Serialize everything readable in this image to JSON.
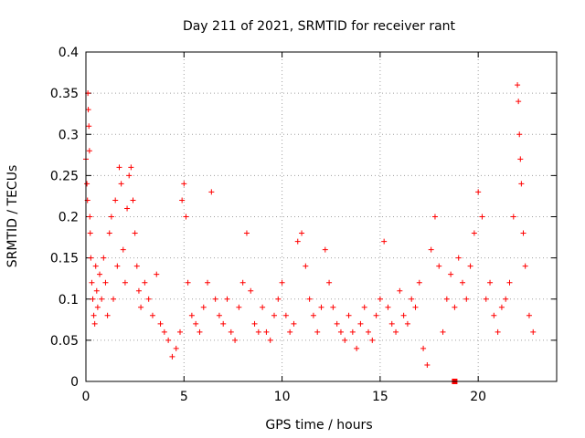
{
  "chart_data": {
    "type": "scatter",
    "title": "Day 211 of 2021, SRMTID for receiver rant",
    "xlabel": "GPS time / hours",
    "ylabel": "SRMTID / TECUs",
    "xlim": [
      0,
      24
    ],
    "ylim": [
      0,
      0.4
    ],
    "xticks": [
      0,
      5,
      10,
      15,
      20
    ],
    "xtick_labels": [
      "0",
      "5",
      "10",
      "15",
      "20"
    ],
    "yticks": [
      0,
      0.05,
      0.1,
      0.15,
      0.2,
      0.25,
      0.3,
      0.35,
      0.4
    ],
    "ytick_labels": [
      "0",
      "0.05",
      "0.1",
      "0.15",
      "0.2",
      "0.25",
      "0.3",
      "0.35",
      "0.4"
    ],
    "grid": true,
    "marker": "plus",
    "color": "#ff0000",
    "series": [
      {
        "name": "SRMTID",
        "points": [
          [
            0.0,
            0.27
          ],
          [
            0.05,
            0.24
          ],
          [
            0.08,
            0.22
          ],
          [
            0.1,
            0.35
          ],
          [
            0.12,
            0.33
          ],
          [
            0.15,
            0.31
          ],
          [
            0.18,
            0.28
          ],
          [
            0.2,
            0.2
          ],
          [
            0.22,
            0.18
          ],
          [
            0.25,
            0.15
          ],
          [
            0.3,
            0.12
          ],
          [
            0.35,
            0.1
          ],
          [
            0.4,
            0.08
          ],
          [
            0.45,
            0.07
          ],
          [
            0.5,
            0.14
          ],
          [
            0.55,
            0.11
          ],
          [
            0.6,
            0.09
          ],
          [
            0.7,
            0.13
          ],
          [
            0.8,
            0.1
          ],
          [
            0.9,
            0.15
          ],
          [
            1.0,
            0.12
          ],
          [
            1.1,
            0.08
          ],
          [
            1.2,
            0.18
          ],
          [
            1.3,
            0.2
          ],
          [
            1.4,
            0.1
          ],
          [
            1.5,
            0.22
          ],
          [
            1.6,
            0.14
          ],
          [
            1.7,
            0.26
          ],
          [
            1.8,
            0.24
          ],
          [
            1.9,
            0.16
          ],
          [
            2.0,
            0.12
          ],
          [
            2.1,
            0.21
          ],
          [
            2.2,
            0.25
          ],
          [
            2.3,
            0.26
          ],
          [
            2.4,
            0.22
          ],
          [
            2.5,
            0.18
          ],
          [
            2.6,
            0.14
          ],
          [
            2.7,
            0.11
          ],
          [
            2.8,
            0.09
          ],
          [
            3.0,
            0.12
          ],
          [
            3.2,
            0.1
          ],
          [
            3.4,
            0.08
          ],
          [
            3.6,
            0.13
          ],
          [
            3.8,
            0.07
          ],
          [
            4.0,
            0.06
          ],
          [
            4.2,
            0.05
          ],
          [
            4.4,
            0.03
          ],
          [
            4.6,
            0.04
          ],
          [
            4.8,
            0.06
          ],
          [
            4.9,
            0.22
          ],
          [
            5.0,
            0.24
          ],
          [
            5.1,
            0.2
          ],
          [
            5.2,
            0.12
          ],
          [
            5.4,
            0.08
          ],
          [
            5.6,
            0.07
          ],
          [
            5.8,
            0.06
          ],
          [
            6.0,
            0.09
          ],
          [
            6.2,
            0.12
          ],
          [
            6.4,
            0.23
          ],
          [
            6.6,
            0.1
          ],
          [
            6.8,
            0.08
          ],
          [
            7.0,
            0.07
          ],
          [
            7.2,
            0.1
          ],
          [
            7.4,
            0.06
          ],
          [
            7.6,
            0.05
          ],
          [
            7.8,
            0.09
          ],
          [
            8.0,
            0.12
          ],
          [
            8.2,
            0.18
          ],
          [
            8.4,
            0.11
          ],
          [
            8.6,
            0.07
          ],
          [
            8.8,
            0.06
          ],
          [
            9.0,
            0.09
          ],
          [
            9.2,
            0.06
          ],
          [
            9.4,
            0.05
          ],
          [
            9.6,
            0.08
          ],
          [
            9.8,
            0.1
          ],
          [
            10.0,
            0.12
          ],
          [
            10.2,
            0.08
          ],
          [
            10.4,
            0.06
          ],
          [
            10.6,
            0.07
          ],
          [
            10.8,
            0.17
          ],
          [
            11.0,
            0.18
          ],
          [
            11.2,
            0.14
          ],
          [
            11.4,
            0.1
          ],
          [
            11.6,
            0.08
          ],
          [
            11.8,
            0.06
          ],
          [
            12.0,
            0.09
          ],
          [
            12.2,
            0.16
          ],
          [
            12.4,
            0.12
          ],
          [
            12.6,
            0.09
          ],
          [
            12.8,
            0.07
          ],
          [
            13.0,
            0.06
          ],
          [
            13.2,
            0.05
          ],
          [
            13.4,
            0.08
          ],
          [
            13.6,
            0.06
          ],
          [
            13.8,
            0.04
          ],
          [
            14.0,
            0.07
          ],
          [
            14.2,
            0.09
          ],
          [
            14.4,
            0.06
          ],
          [
            14.6,
            0.05
          ],
          [
            14.8,
            0.08
          ],
          [
            15.0,
            0.1
          ],
          [
            15.2,
            0.17
          ],
          [
            15.4,
            0.09
          ],
          [
            15.6,
            0.07
          ],
          [
            15.8,
            0.06
          ],
          [
            16.0,
            0.11
          ],
          [
            16.2,
            0.08
          ],
          [
            16.4,
            0.07
          ],
          [
            16.6,
            0.1
          ],
          [
            16.8,
            0.09
          ],
          [
            17.0,
            0.12
          ],
          [
            17.2,
            0.04
          ],
          [
            17.4,
            0.02
          ],
          [
            17.6,
            0.16
          ],
          [
            17.8,
            0.2
          ],
          [
            18.0,
            0.14
          ],
          [
            18.2,
            0.06
          ],
          [
            18.4,
            0.1
          ],
          [
            18.6,
            0.13
          ],
          [
            18.8,
            0.09
          ],
          [
            19.0,
            0.15
          ],
          [
            19.2,
            0.12
          ],
          [
            19.4,
            0.1
          ],
          [
            19.6,
            0.14
          ],
          [
            19.8,
            0.18
          ],
          [
            20.0,
            0.23
          ],
          [
            20.2,
            0.2
          ],
          [
            20.4,
            0.1
          ],
          [
            20.6,
            0.12
          ],
          [
            20.8,
            0.08
          ],
          [
            21.0,
            0.06
          ],
          [
            21.2,
            0.09
          ],
          [
            21.4,
            0.1
          ],
          [
            21.6,
            0.12
          ],
          [
            21.8,
            0.2
          ],
          [
            22.0,
            0.36
          ],
          [
            22.05,
            0.34
          ],
          [
            22.1,
            0.3
          ],
          [
            22.15,
            0.27
          ],
          [
            22.2,
            0.24
          ],
          [
            22.3,
            0.18
          ],
          [
            22.4,
            0.14
          ],
          [
            22.6,
            0.08
          ],
          [
            22.8,
            0.06
          ]
        ]
      },
      {
        "name": "marker",
        "points": [
          [
            18.8,
            0.0
          ]
        ]
      }
    ]
  }
}
